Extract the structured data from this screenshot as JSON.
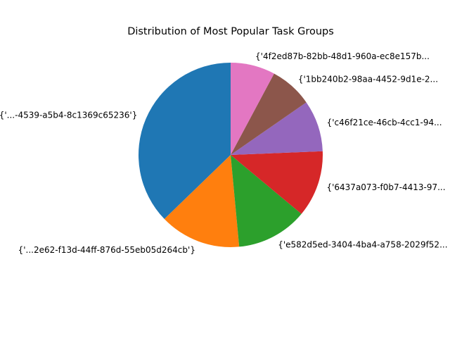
{
  "chart_data": {
    "type": "pie",
    "title": "Distribution of Most Popular Task Groups",
    "start_angle_deg": 90,
    "direction": "counterclockwise",
    "legend": "none",
    "slices": [
      {
        "label": "{'...-4539-a5b4-8c1369c65236'}",
        "value": 37.6,
        "color": "#1f77b4"
      },
      {
        "label": "{'...2e62-f13d-44ff-876d-55eb05d264cb'}",
        "value": 14.4,
        "color": "#ff7f0e"
      },
      {
        "label": "{'e582d5ed-3404-4ba4-a758-2029f52...",
        "value": 12.6,
        "color": "#2ca02c"
      },
      {
        "label": "{'6437a073-f0b7-4413-97...",
        "value": 11.8,
        "color": "#d62728"
      },
      {
        "label": "{'c46f21ce-46cb-4cc1-94...",
        "value": 9.1,
        "color": "#9467bd"
      },
      {
        "label": "{'1bb240b2-98aa-4452-9d1e-2...",
        "value": 7.6,
        "color": "#8c564b"
      },
      {
        "label": "{'4f2ed87b-82bb-48d1-960a-ec8e157b...",
        "value": 7.9,
        "color": "#e377c2"
      }
    ]
  }
}
